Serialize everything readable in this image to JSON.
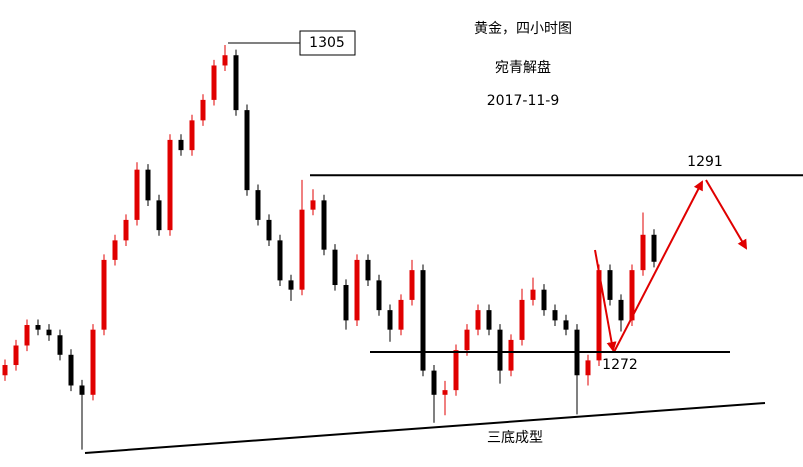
{
  "chart_data": {
    "type": "candlestick",
    "title": "黄金，四小时图",
    "subtitle": "宛青解盘",
    "date": "2017-11-9",
    "pattern_label": "三底成型",
    "levels": [
      1305,
      1291,
      1272
    ],
    "up_color": "#e00000",
    "down_color": "#000000",
    "series": {
      "open": [
        1269.5,
        1270.6,
        1272.7,
        1274.9,
        1274.4,
        1273.8,
        1271.7,
        1268.4,
        1267.4,
        1274.4,
        1281.9,
        1284,
        1286.2,
        1291.6,
        1288.3,
        1285.1,
        1294.8,
        1293.7,
        1296.9,
        1299.1,
        1302.8,
        1303.9,
        1298,
        1289.4,
        1286.2,
        1284,
        1279.7,
        1278.7,
        1287.3,
        1288.3,
        1283,
        1279.2,
        1275.4,
        1281.9,
        1279.7,
        1276.5,
        1274.4,
        1277.6,
        1280.8,
        1270,
        1267.4,
        1267.9,
        1272.2,
        1274.4,
        1276.5,
        1274.4,
        1270,
        1273.3,
        1277.6,
        1278.7,
        1276.5,
        1275.4,
        1274.4,
        1269.5,
        1271.1,
        1280.8,
        1277.6,
        1275.4,
        1280.8,
        1284.6
      ],
      "high": [
        1271.2,
        1273.3,
        1275.5,
        1275.5,
        1275,
        1274.4,
        1272.3,
        1269,
        1275,
        1282.5,
        1284.6,
        1286.8,
        1292.4,
        1292.2,
        1288.9,
        1295.4,
        1295.4,
        1297.5,
        1299.7,
        1303.4,
        1305,
        1304.5,
        1298.6,
        1290,
        1286.8,
        1284.6,
        1280.3,
        1290.5,
        1289.5,
        1288.9,
        1283.6,
        1279.8,
        1282.5,
        1282.5,
        1280.3,
        1277.1,
        1278.2,
        1281.9,
        1281.4,
        1270.6,
        1268.9,
        1272.8,
        1275,
        1277.1,
        1277.1,
        1275,
        1273.9,
        1278.8,
        1280,
        1279.3,
        1277.1,
        1276,
        1275,
        1271.7,
        1281.4,
        1281.4,
        1278.2,
        1281.4,
        1287,
        1285.2
      ],
      "low": [
        1268.9,
        1270,
        1272.1,
        1273.8,
        1273.2,
        1271.1,
        1267.8,
        1261.5,
        1266.8,
        1273.8,
        1281.3,
        1283.4,
        1285.6,
        1287.7,
        1284.5,
        1284.5,
        1293.1,
        1293.1,
        1296.3,
        1298.5,
        1302.2,
        1297.4,
        1288.8,
        1285.6,
        1283.4,
        1279.1,
        1277.5,
        1278.1,
        1286.7,
        1282.4,
        1278.6,
        1274.4,
        1274.8,
        1279.1,
        1275.9,
        1273.1,
        1273.8,
        1277,
        1269.4,
        1264.4,
        1265.2,
        1267.3,
        1271.6,
        1273.8,
        1273.8,
        1268.6,
        1269.4,
        1272.7,
        1277,
        1275.9,
        1274.8,
        1273.8,
        1265.3,
        1268.4,
        1270.5,
        1277,
        1274.2,
        1274.8,
        1280.2,
        1281.1
      ],
      "close": [
        1270.6,
        1272.7,
        1274.9,
        1274.4,
        1273.8,
        1271.7,
        1268.4,
        1267.4,
        1274.4,
        1281.9,
        1284,
        1286.2,
        1291.6,
        1288.3,
        1285.1,
        1294.8,
        1293.7,
        1296.9,
        1299.1,
        1302.8,
        1303.9,
        1298,
        1289.4,
        1286.2,
        1284,
        1279.7,
        1278.7,
        1287.3,
        1288.3,
        1283,
        1279.2,
        1275.4,
        1281.9,
        1279.7,
        1276.5,
        1274.4,
        1277.6,
        1280.8,
        1270,
        1267.4,
        1267.9,
        1272.2,
        1274.4,
        1276.5,
        1274.4,
        1270,
        1273.3,
        1277.6,
        1278.7,
        1276.5,
        1275.4,
        1274.4,
        1269.5,
        1271.1,
        1280.8,
        1277.6,
        1275.4,
        1280.8,
        1284.6,
        1281.7
      ]
    }
  }
}
